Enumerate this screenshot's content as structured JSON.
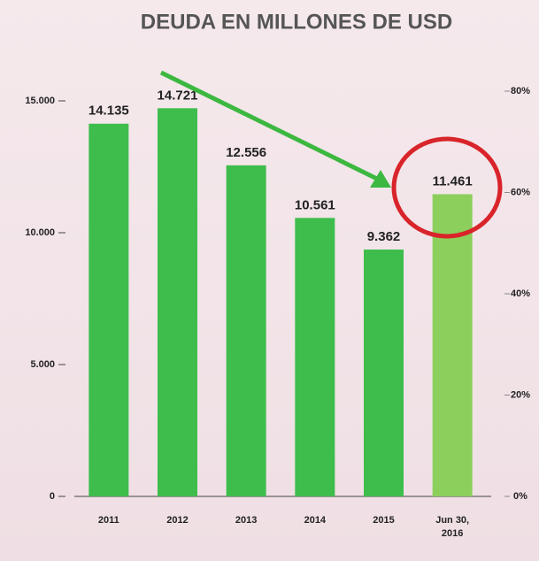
{
  "chart_data": {
    "type": "bar",
    "title": "DEUDA EN MILLONES DE USD",
    "categories": [
      "2011",
      "2012",
      "2013",
      "2014",
      "2015",
      "Jun 30, 2016"
    ],
    "values": [
      14135,
      14721,
      12556,
      10561,
      9362,
      11461
    ],
    "value_labels": [
      "14.135",
      "14.721",
      "12.556",
      "10.561",
      "9.362",
      "11.461"
    ],
    "colors": [
      "#3fbd4c",
      "#3fbd4c",
      "#3fbd4c",
      "#3fbd4c",
      "#3fbd4c",
      "#8ccf5c"
    ],
    "ylim": [
      0,
      15000
    ],
    "yticks": [
      0,
      {
        "value": 5000,
        "label": "5.000"
      },
      {
        "value": 10000,
        "label": "10.000"
      },
      {
        "value": 15000,
        "label": "15.000"
      }
    ],
    "y2lim": [
      0,
      80
    ],
    "y2ticks": [
      {
        "value": 0,
        "label": "0%"
      },
      {
        "value": 20,
        "label": "20%"
      },
      {
        "value": 40,
        "label": "40%"
      },
      {
        "value": 60,
        "label": "60%"
      },
      {
        "value": 80,
        "label": "80%"
      }
    ]
  }
}
